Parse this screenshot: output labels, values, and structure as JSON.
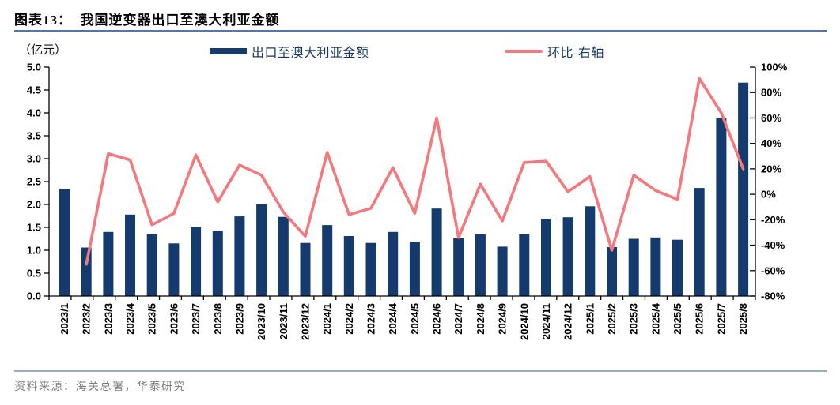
{
  "header": {
    "title": "图表13：  我国逆变器出口至澳大利亚金额"
  },
  "chart": {
    "unit_label": "（亿元）",
    "legend": [
      {
        "label": "出口至澳大利亚金额",
        "type": "bar"
      },
      {
        "label": "环比-右轴",
        "type": "line"
      }
    ]
  },
  "chart_data": {
    "type": "bar",
    "title": "图表13：我国逆变器出口至澳大利亚金额",
    "categories": [
      "2023/1",
      "2023/2",
      "2023/3",
      "2023/4",
      "2023/5",
      "2023/6",
      "2023/7",
      "2023/8",
      "2023/9",
      "2023/10",
      "2023/11",
      "2023/12",
      "2024/1",
      "2024/2",
      "2024/3",
      "2024/4",
      "2024/5",
      "2024/6",
      "2024/7",
      "2024/8",
      "2024/9",
      "2024/10",
      "2024/11",
      "2024/12",
      "2025/1",
      "2025/2",
      "2025/3",
      "2025/4",
      "2025/5",
      "2025/6",
      "2025/7",
      "2025/8"
    ],
    "series": [
      {
        "name": "出口至澳大利亚金额",
        "type": "bar",
        "axis": "left",
        "unit": "亿元",
        "values": [
          2.33,
          1.06,
          1.4,
          1.78,
          1.35,
          1.15,
          1.51,
          1.42,
          1.74,
          2.0,
          1.73,
          1.16,
          1.55,
          1.31,
          1.16,
          1.4,
          1.19,
          1.91,
          1.26,
          1.36,
          1.08,
          1.35,
          1.69,
          1.72,
          1.96,
          1.07,
          1.25,
          1.28,
          1.23,
          2.36,
          3.88,
          4.66
        ]
      },
      {
        "name": "环比-右轴",
        "type": "line",
        "axis": "right",
        "unit": "%",
        "values": [
          null,
          -55,
          32,
          27,
          -24,
          -15,
          31,
          -6,
          23,
          15,
          -14,
          -33,
          33,
          -16,
          -11,
          21,
          -15,
          60,
          -34,
          8,
          -21,
          25,
          26,
          2,
          14,
          -44,
          15,
          3,
          -4,
          91,
          64,
          20
        ]
      }
    ],
    "left_axis": {
      "min": 0,
      "max": 5,
      "tick_labels": [
        "5.0",
        "4.5",
        "4.0",
        "3.5",
        "3.0",
        "2.5",
        "2.0",
        "1.5",
        "1.0",
        "0.5",
        "0.0"
      ]
    },
    "right_axis": {
      "min": -80,
      "max": 100,
      "tick_labels": [
        "100%",
        "80%",
        "60%",
        "40%",
        "20%",
        "0%",
        "-20%",
        "-40%",
        "-60%",
        "-80%"
      ]
    },
    "grid": false,
    "legend_position": "top"
  },
  "footer": {
    "source": "资料来源：海关总署，华泰研究"
  },
  "colors": {
    "bar": "#143A6E",
    "line": "#F5797C",
    "axis": "#000000",
    "legend_text": "#17375E",
    "title_rule": "#54779E",
    "footer_rule": "#9AACC2",
    "footer_text": "#7F7F7F"
  }
}
